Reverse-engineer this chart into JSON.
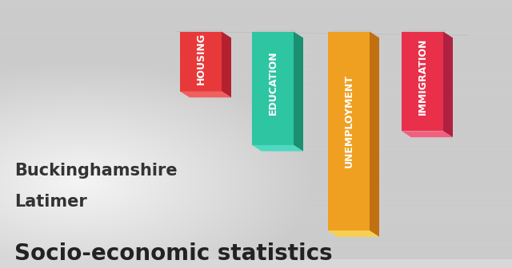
{
  "title": "Socio-economic statistics",
  "subtitle1": "Latimer",
  "subtitle2": "Buckinghamshire",
  "categories": [
    "HOUSING",
    "EDUCATION",
    "UNEMPLOYMENT",
    "IMMIGRATION"
  ],
  "values": [
    0.3,
    0.57,
    1.0,
    0.5
  ],
  "bar_colors_front": [
    "#E8393A",
    "#2DC5A2",
    "#F0A020",
    "#E8304A"
  ],
  "bar_colors_side": [
    "#B52030",
    "#1A9070",
    "#C07010",
    "#B02040"
  ],
  "bar_colors_top": [
    "#F06060",
    "#50D8C0",
    "#F8D050",
    "#F06080"
  ],
  "bg_color_center": "#f0f0f0",
  "bg_color_edge": "#d0d0d0",
  "title_fontsize": 20,
  "subtitle_fontsize": 15,
  "label_fontsize": 9,
  "title_color": "#222222",
  "subtitle_color": "#333333",
  "label_color": "#ffffff",
  "shadow_color": "#c8c8c8"
}
